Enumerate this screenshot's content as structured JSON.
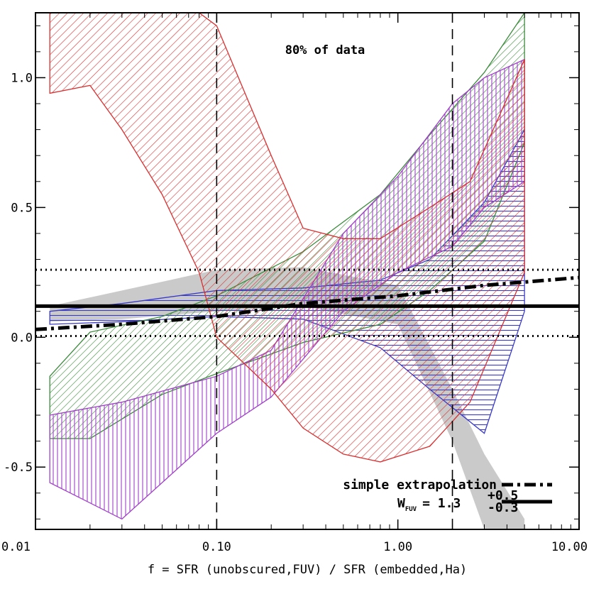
{
  "chart_data": {
    "type": "area",
    "title": "",
    "xlabel": "f = SFR (unobscured,FUV) / SFR (embedded,Ha)",
    "ylabel": "",
    "xscale": "log",
    "xlim": [
      0.01,
      10.0
    ],
    "ylim": [
      -0.74,
      1.25
    ],
    "x_ticks": [
      {
        "value": 0.01,
        "label": "0.01"
      },
      {
        "value": 0.1,
        "label": "0.10"
      },
      {
        "value": 1.0,
        "label": "1.00"
      },
      {
        "value": 10.0,
        "label": "10.00"
      }
    ],
    "y_ticks": [
      {
        "value": -0.5,
        "label": "-0.5"
      },
      {
        "value": 0.0,
        "label": "0.0"
      },
      {
        "value": 0.5,
        "label": "0.5"
      },
      {
        "value": 1.0,
        "label": "1.0"
      }
    ],
    "annotation": "80% of data",
    "legend_position": "bottom-right",
    "legend": [
      {
        "label": "simple extrapolation",
        "style": "dash-dot"
      },
      {
        "label": "W",
        "sub": "FUV",
        "eq": "= 1.3",
        "sup": "+0.5",
        "inf": "-0.3",
        "style": "solid"
      }
    ],
    "reference_lines": [
      {
        "name": "mean",
        "orientation": "horizontal",
        "value": 0.12,
        "style": "solid"
      },
      {
        "name": "upper-bound",
        "orientation": "horizontal",
        "value": 0.26,
        "style": "dotted"
      },
      {
        "name": "lower-bound",
        "orientation": "horizontal",
        "value": 0.005,
        "style": "dotted"
      },
      {
        "name": "left-limit",
        "orientation": "vertical",
        "value": 0.1,
        "style": "dashed"
      },
      {
        "name": "right-limit",
        "orientation": "vertical",
        "value": 2.0,
        "style": "dashed"
      }
    ],
    "extrapolation_line": {
      "x": [
        0.01,
        0.03,
        0.1,
        0.3,
        1.0,
        3.0,
        10.0
      ],
      "y": [
        0.03,
        0.05,
        0.08,
        0.13,
        0.16,
        0.2,
        0.23
      ]
    },
    "bands": [
      {
        "name": "gray",
        "color": "#c4c4c4",
        "pattern": "solid",
        "x": [
          0.012,
          0.03,
          0.1,
          0.3,
          1.0,
          2.0,
          3.0,
          5.0
        ],
        "upper": [
          0.12,
          0.18,
          0.26,
          0.27,
          0.2,
          -0.2,
          -0.45,
          -0.7
        ],
        "lower": [
          0.06,
          0.07,
          0.1,
          0.12,
          0.05,
          -0.4,
          -0.74,
          -0.74
        ]
      },
      {
        "name": "blue",
        "color": "#3a3ac8",
        "pattern": "horizontal",
        "x": [
          0.012,
          0.03,
          0.1,
          0.3,
          0.8,
          1.5,
          3.0,
          5.0
        ],
        "upper": [
          0.1,
          0.13,
          0.18,
          0.19,
          0.22,
          0.3,
          0.52,
          0.8
        ],
        "lower": [
          0.05,
          0.06,
          0.08,
          0.07,
          -0.04,
          -0.2,
          -0.37,
          0.1
        ]
      },
      {
        "name": "green",
        "color": "#3c8c3c",
        "pattern": "diagonal",
        "x": [
          0.012,
          0.02,
          0.05,
          0.1,
          0.3,
          0.8,
          1.5,
          3.0,
          5.0
        ],
        "upper": [
          -0.15,
          0.02,
          0.08,
          0.16,
          0.33,
          0.55,
          0.78,
          1.02,
          1.25
        ],
        "lower": [
          -0.39,
          -0.39,
          -0.22,
          -0.14,
          -0.02,
          0.05,
          0.18,
          0.37,
          0.75
        ]
      },
      {
        "name": "purple",
        "color": "#a040c8",
        "pattern": "vertical",
        "x": [
          0.012,
          0.03,
          0.1,
          0.2,
          0.5,
          1.0,
          2.0,
          3.0,
          5.0
        ],
        "upper": [
          -0.3,
          -0.25,
          -0.15,
          -0.05,
          0.4,
          0.62,
          0.9,
          1.0,
          1.07
        ],
        "lower": [
          -0.56,
          -0.7,
          -0.37,
          -0.23,
          0.1,
          0.25,
          0.35,
          0.5,
          0.6
        ]
      },
      {
        "name": "red",
        "color": "#d83030",
        "pattern": "diagonal",
        "x": [
          0.012,
          0.02,
          0.03,
          0.05,
          0.08,
          0.1,
          0.2,
          0.3,
          0.5,
          0.8,
          1.5,
          2.5,
          5.0
        ],
        "upper": [
          1.25,
          1.25,
          1.25,
          1.25,
          1.25,
          1.2,
          0.7,
          0.42,
          0.38,
          0.38,
          0.5,
          0.6,
          1.07
        ],
        "lower": [
          0.94,
          0.97,
          0.8,
          0.55,
          0.25,
          0.0,
          -0.2,
          -0.35,
          -0.45,
          -0.48,
          -0.42,
          -0.25,
          0.25
        ]
      }
    ]
  }
}
